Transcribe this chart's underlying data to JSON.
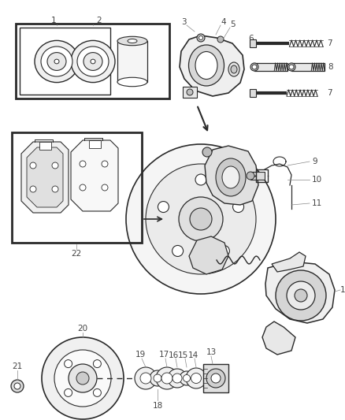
{
  "bg_color": "#ffffff",
  "line_color": "#2a2a2a",
  "label_color": "#444444",
  "fig_width": 4.39,
  "fig_height": 5.33,
  "dpi": 100
}
